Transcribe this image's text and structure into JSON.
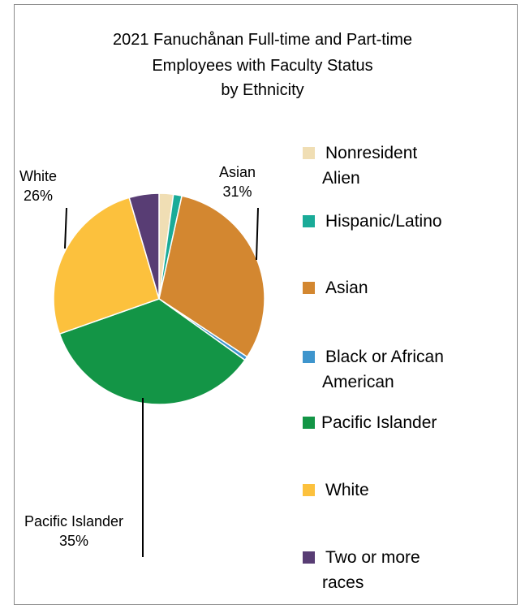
{
  "chart_data": {
    "type": "pie",
    "title": [
      "2021 Fanuchånan Full-time and Part-time",
      "Employees with Faculty Status",
      "by Ethnicity"
    ],
    "categories": [
      "Nonresident Alien",
      "Hispanic/Latino",
      "Asian",
      "Black or African American",
      "Pacific Islander",
      "White",
      "Two or more races"
    ],
    "values": [
      2.2,
      1.3,
      31,
      0.6,
      35,
      26,
      4.6
    ],
    "colors": [
      "#f0deb4",
      "#1aab98",
      "#d38730",
      "#3e95cd",
      "#139546",
      "#fcc13d",
      "#583d74"
    ],
    "legend_position": "right",
    "data_labels": [
      {
        "category": "White",
        "name": "White",
        "pct": "26%"
      },
      {
        "category": "Asian",
        "name": "Asian",
        "pct": "31%"
      },
      {
        "category": "Pacific Islander",
        "name": "Pacific Islander",
        "pct": "35%"
      }
    ],
    "legend": [
      [
        "Nonresident",
        "Alien"
      ],
      [
        "Hispanic/Latino"
      ],
      [
        "Asian"
      ],
      [
        "Black or African",
        "American"
      ],
      [
        "Pacific Islander"
      ],
      [
        "White"
      ],
      [
        "Two or more",
        "races"
      ]
    ]
  }
}
